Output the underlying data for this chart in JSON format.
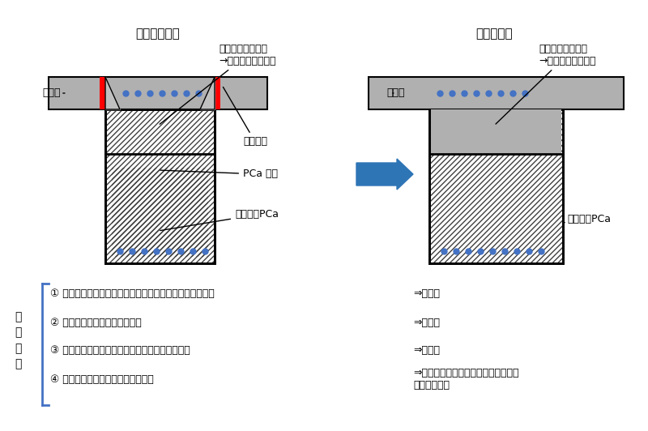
{
  "title_left": "【従来工法】",
  "title_right": "【本工法】",
  "bg_color": "#ffffff",
  "gray_color": "#b0b0b0",
  "dark_gray": "#606060",
  "hatch_color": "#404040",
  "blue_dot_color": "#4472c4",
  "red_color": "#ff0000",
  "arrow_color": "#2e75b6",
  "label_slab_left": "スラブ",
  "label_slab_right": "スラブ",
  "label_beam_top_left": "梁上部：現場打ち\n→梁下部と同じ強度",
  "label_beam_top_right": "梁上部：現場打ち\n→スラブと同じ強度",
  "label_tome": "止め型枠",
  "label_pca_floor": "PCa 床板",
  "label_beam_bottom_left": "梁下部：PCa",
  "label_beam_bottom_right": "梁下部：PCa",
  "step_label": "施\n工\n手\n順",
  "steps": [
    "① 梁上部とスラブ上部を打ち分けるために止め型枠を設置",
    "② 梁上部のコンクリートを打設",
    "③ コンクリート硬化後に止め型枠を解体（外す）",
    "④ スラブ上部のコンクリートを打設"
  ],
  "arrows": [
    "⇒　省略",
    "⇒　省略",
    "⇒　省略",
    "⇒　梁・スラブ上部のコンクリートを\n　　同時打設"
  ],
  "font_size_title": 11,
  "font_size_label": 9,
  "font_size_step": 9
}
